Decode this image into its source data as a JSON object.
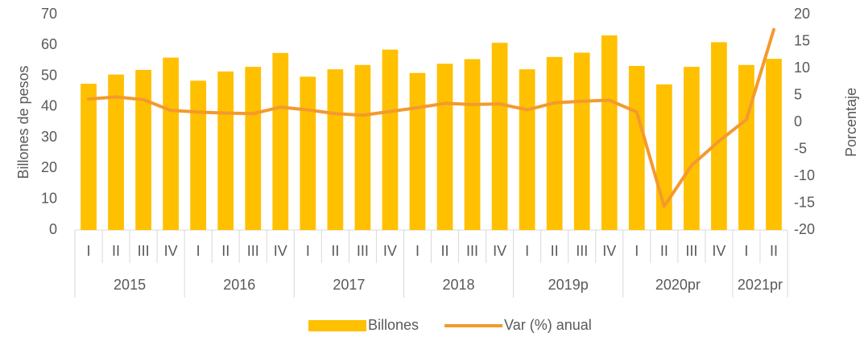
{
  "chart_data": {
    "type": "bar-line",
    "groups": [
      {
        "label": "2015",
        "categories": [
          "I",
          "II",
          "III",
          "IV"
        ]
      },
      {
        "label": "2016",
        "categories": [
          "I",
          "II",
          "III",
          "IV"
        ]
      },
      {
        "label": "2017",
        "categories": [
          "I",
          "II",
          "III",
          "IV"
        ]
      },
      {
        "label": "2018",
        "categories": [
          "I",
          "II",
          "III",
          "IV"
        ]
      },
      {
        "label": "2019p",
        "categories": [
          "I",
          "II",
          "III",
          "IV"
        ]
      },
      {
        "label": "2020pr",
        "categories": [
          "I",
          "II",
          "III",
          "IV"
        ]
      },
      {
        "label": "2021pr",
        "categories": [
          "I",
          "II"
        ]
      }
    ],
    "ylabel": "Billones de pesos",
    "y2label": "Porcentaje",
    "ylim": [
      0,
      70
    ],
    "yticks": [
      0,
      10,
      20,
      30,
      40,
      50,
      60,
      70
    ],
    "y2lim": [
      -20,
      20
    ],
    "y2ticks": [
      -20,
      -15,
      -10,
      -5,
      0,
      5,
      10,
      15,
      20
    ],
    "legend": "bottom",
    "series": [
      {
        "name": "Billones",
        "type": "bar",
        "color": "#FFC000",
        "values": [
          47.5,
          50.5,
          52,
          56,
          48.5,
          51.5,
          53,
          57.5,
          49.8,
          52.2,
          53.6,
          58.6,
          51,
          54,
          55.5,
          60.8,
          52.2,
          56.2,
          57.6,
          63.2,
          53.3,
          47.3,
          53,
          61,
          53.6,
          55.6
        ]
      },
      {
        "name": "Var (%) anual",
        "type": "line",
        "axis": "y2",
        "color": "#F39A2E",
        "values": [
          4.3,
          4.7,
          4.2,
          2.2,
          1.9,
          1.7,
          1.6,
          2.8,
          2.3,
          1.6,
          1.3,
          2.0,
          2.7,
          3.5,
          3.3,
          3.4,
          2.3,
          3.6,
          3.9,
          4.1,
          1.9,
          -15.6,
          -8.0,
          -3.5,
          0.5,
          17.2
        ]
      }
    ]
  }
}
